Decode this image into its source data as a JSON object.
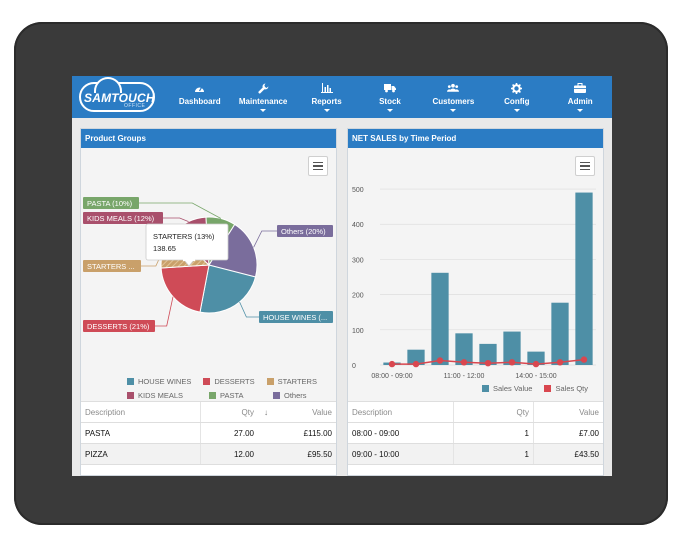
{
  "app": {
    "brand": "SAMTOUCH",
    "brand_sub": "OFFICE"
  },
  "nav": {
    "items": [
      {
        "label": "Dashboard",
        "icon": "dashboard-icon"
      },
      {
        "label": "Maintenance",
        "icon": "wrench-icon"
      },
      {
        "label": "Reports",
        "icon": "bar-chart-icon"
      },
      {
        "label": "Stock",
        "icon": "truck-icon"
      },
      {
        "label": "Customers",
        "icon": "users-icon"
      },
      {
        "label": "Config",
        "icon": "gear-icon"
      },
      {
        "label": "Admin",
        "icon": "briefcase-icon"
      }
    ]
  },
  "left_panel": {
    "title": "Product Groups",
    "tooltip": {
      "label": "STARTERS (13%)",
      "value": "138.65"
    },
    "table": {
      "headers": {
        "description": "Description",
        "qty": "Qty",
        "sort": "↓",
        "value": "Value"
      },
      "rows": [
        {
          "description": "PASTA",
          "qty": "27.00",
          "value": "£115.00"
        },
        {
          "description": "PIZZA",
          "qty": "12.00",
          "value": "£95.50"
        }
      ]
    }
  },
  "right_panel": {
    "title": "NET SALES by Time Period",
    "table": {
      "headers": {
        "description": "Description",
        "qty": "Qty",
        "value": "Value"
      },
      "rows": [
        {
          "description": "08:00 - 09:00",
          "qty": "1",
          "value": "£7.00"
        },
        {
          "description": "09:00 - 10:00",
          "qty": "1",
          "value": "£43.50"
        }
      ]
    }
  },
  "chart_data": [
    {
      "type": "pie",
      "slices": [
        {
          "name": "HOUSE WINES",
          "label": "HOUSE WINES (...",
          "percent": 28,
          "color": "#4e8fa6"
        },
        {
          "name": "DESSERTS",
          "label": "DESSERTS (21%)",
          "percent": 21,
          "color": "#cf4b57"
        },
        {
          "name": "STARTERS",
          "label": "STARTERS ...",
          "percent": 13,
          "color": "#c9a06a",
          "highlighted": true
        },
        {
          "name": "KIDS MEALS",
          "label": "KIDS MEALS (12%)",
          "percent": 12,
          "color": "#a9506c"
        },
        {
          "name": "PASTA",
          "label": "PASTA (10%)",
          "percent": 10,
          "color": "#78a66a"
        },
        {
          "name": "Others",
          "label": "Others (20%)",
          "percent": 20,
          "color": "#7a6d9c"
        }
      ],
      "legend": [
        "HOUSE WINES",
        "DESSERTS",
        "STARTERS",
        "KIDS MEALS",
        "PASTA",
        "Others"
      ],
      "legend_position": "bottom"
    },
    {
      "type": "bar",
      "x_tick_labels": [
        "08:00 - 09:00",
        "11:00 - 12:00",
        "14:00 - 15:00"
      ],
      "categories": [
        "08:00 - 09:00",
        "09:00 - 10:00",
        "10:00 - 11:00",
        "11:00 - 12:00",
        "12:00 - 13:00",
        "13:00 - 14:00",
        "14:00 - 15:00",
        "15:00 - 16:00",
        "16:00 - 17:00"
      ],
      "series": [
        {
          "name": "Sales Value",
          "type": "bar",
          "color": "#4e8fa6",
          "values": [
            7,
            43.5,
            262,
            90,
            60,
            95,
            38,
            177,
            490
          ]
        },
        {
          "name": "Sales Qty",
          "type": "line",
          "color": "#d9474f",
          "values": [
            1,
            1,
            5,
            3,
            2,
            3,
            1,
            3,
            6
          ]
        }
      ],
      "y_ticks": [
        0,
        100,
        200,
        300,
        400,
        500
      ],
      "ylim": [
        0,
        520
      ],
      "grid": true,
      "legend_position": "bottom"
    }
  ]
}
